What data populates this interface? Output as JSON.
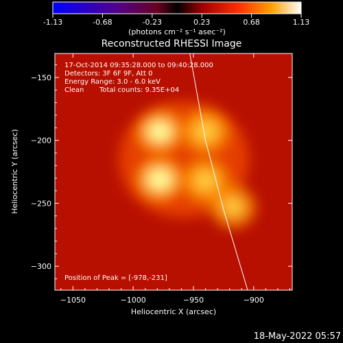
{
  "colorbar": {
    "tick_labels": [
      "-1.13",
      "-0.68",
      "-0.23",
      "0.23",
      "0.68",
      "1.13"
    ],
    "unit": "(photons cm⁻² s⁻¹ asec⁻²)"
  },
  "date_stamp": "18-May-2022 05:57",
  "chart_data": {
    "type": "heatmap",
    "title": "Reconstructed RHESSI Image",
    "xlabel": "Heliocentric X (arcsec)",
    "ylabel": "Heliocentric Y (arcsec)",
    "xlim": [
      -1065,
      -868
    ],
    "ylim": [
      -319,
      -131
    ],
    "x_ticks": [
      -1050,
      -1000,
      -950,
      -900
    ],
    "y_ticks": [
      -150,
      -200,
      -250,
      -300
    ],
    "x_tick_labels": [
      "−1050",
      "−1000",
      "−950",
      "−900"
    ],
    "y_tick_labels": [
      "−150",
      "−200",
      "−250",
      "−300"
    ],
    "colormap": "hot",
    "value_range": [
      -1.13,
      1.13
    ],
    "sources": [
      {
        "x": -978,
        "y": -231,
        "peak": 1.13
      },
      {
        "x": -978,
        "y": -193,
        "peak": 1.0
      },
      {
        "x": -940,
        "y": -193,
        "peak": 0.85
      },
      {
        "x": -940,
        "y": -232,
        "peak": 0.8
      },
      {
        "x": -917,
        "y": -253,
        "peak": 0.6
      }
    ],
    "limb_curve": [
      [
        -953,
        -131
      ],
      [
        -940,
        -200
      ],
      [
        -925,
        -255
      ],
      [
        -905,
        -319
      ]
    ],
    "annotations": {
      "time": "17-Oct-2014 09:35:28.000 to 09:40:28.000",
      "detectors": "Detectors: 3F 6F 9F, Att 0",
      "energy": "Energy Range: 3.0 - 6.0 keV",
      "clean_label": "Clean",
      "total_counts": "Total counts: 9.35E+04",
      "peak_position": "Position of Peak = [-978,-231]"
    }
  }
}
